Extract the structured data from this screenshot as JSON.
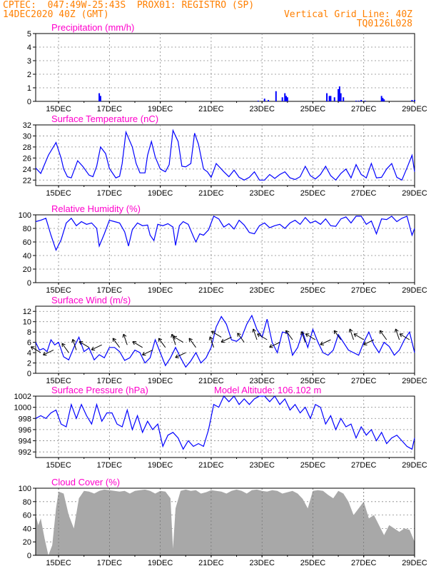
{
  "header": {
    "line1": "CPTEC:  047:49W-25:43S  PROX01: REGISTRO (SP)",
    "line2_left": "14DEC2020 40Z (GMT)",
    "line2_right": "Vertical Grid Line: 40Z",
    "line3_right": "TQ0126L028"
  },
  "colors": {
    "accent": "#ff7f00",
    "title": "#ff00cc",
    "series": "#0000ff",
    "cloud": "#a8a8a8",
    "arrow": "#000000"
  },
  "chart_data": [
    {
      "type": "bar",
      "title": "Precipitation (mm/h)",
      "xlabel": "",
      "ylabel": "",
      "ylim": [
        0,
        5
      ],
      "yticks": [
        "0",
        "1",
        "2",
        "3",
        "4",
        "5"
      ],
      "x_ticks": [
        "15DEC",
        "17DEC",
        "19DEC",
        "21DEC",
        "23DEC",
        "25DEC",
        "27DEC",
        "29DEC"
      ],
      "xlim_days": [
        14.1,
        29.0
      ],
      "x_days": [
        16.6,
        16.65,
        22.85,
        23.1,
        23.25,
        23.55,
        23.8,
        23.9,
        23.95,
        24.0,
        25.55,
        25.65,
        25.7,
        25.85,
        26.0,
        26.05,
        26.1,
        26.2,
        26.7,
        26.8,
        26.9,
        27.05,
        27.7,
        27.75,
        27.8,
        28.9,
        29.0
      ],
      "values": [
        0.6,
        0.4,
        0.05,
        0.2,
        0.1,
        0.75,
        0.3,
        0.6,
        0.4,
        0.3,
        0.6,
        0.4,
        0.4,
        0.3,
        0.9,
        1.1,
        0.6,
        0.3,
        0.05,
        0.05,
        0.1,
        0.05,
        0.4,
        0.25,
        0.15,
        0.1,
        0.1
      ]
    },
    {
      "type": "line",
      "title": "Surface Temperature (nC)",
      "ylim": [
        21,
        32
      ],
      "yticks": [
        "22",
        "24",
        "26",
        "28",
        "30",
        "32"
      ],
      "x_ticks": [
        "15DEC",
        "17DEC",
        "19DEC",
        "21DEC",
        "23DEC",
        "25DEC",
        "27DEC",
        "29DEC"
      ],
      "xlim_days": [
        14.1,
        29.0
      ],
      "x": [
        14.1,
        14.3,
        14.6,
        14.9,
        15.1,
        15.2,
        15.35,
        15.5,
        15.75,
        15.95,
        16.2,
        16.35,
        16.5,
        16.65,
        16.85,
        17.0,
        17.25,
        17.4,
        17.5,
        17.65,
        17.9,
        18.05,
        18.2,
        18.4,
        18.5,
        18.65,
        18.8,
        19.0,
        19.2,
        19.35,
        19.5,
        19.7,
        19.85,
        20.0,
        20.2,
        20.35,
        20.5,
        20.7,
        20.85,
        21.0,
        21.2,
        21.5,
        21.7,
        21.9,
        22.1,
        22.3,
        22.5,
        22.7,
        22.9,
        23.1,
        23.3,
        23.5,
        23.7,
        23.9,
        24.1,
        24.3,
        24.5,
        24.7,
        24.9,
        25.1,
        25.3,
        25.5,
        25.7,
        25.9,
        26.1,
        26.3,
        26.5,
        26.7,
        26.9,
        27.1,
        27.3,
        27.5,
        27.7,
        27.9,
        28.1,
        28.3,
        28.5,
        28.7,
        28.9,
        29.0
      ],
      "y": [
        24.2,
        23.2,
        26.5,
        28.8,
        26.0,
        24.0,
        22.6,
        22.4,
        25.5,
        24.5,
        22.9,
        22.6,
        24.5,
        28.0,
        26.8,
        24.1,
        22.4,
        22.7,
        25.0,
        30.7,
        28.0,
        25.0,
        23.3,
        23.3,
        26.5,
        29.0,
        26.2,
        24.0,
        23.5,
        24.8,
        31.0,
        29.0,
        24.5,
        24.4,
        25.0,
        30.5,
        28.5,
        24.0,
        23.5,
        22.5,
        25.0,
        23.5,
        22.6,
        23.8,
        22.5,
        22.0,
        22.5,
        23.5,
        22.0,
        22.0,
        23.0,
        22.3,
        23.0,
        23.5,
        22.4,
        22.1,
        22.6,
        24.5,
        22.8,
        22.2,
        23.0,
        24.5,
        22.8,
        22.0,
        23.2,
        24.0,
        22.4,
        24.8,
        23.0,
        22.4,
        25.0,
        22.4,
        22.5,
        24.0,
        25.0,
        22.5,
        22.0,
        24.2,
        26.5,
        23.5
      ]
    },
    {
      "type": "line",
      "title": "Relative Humidity (%)",
      "ylim": [
        0,
        100
      ],
      "yticks": [
        "0",
        "20",
        "40",
        "60",
        "80",
        "100"
      ],
      "x_ticks": [
        "15DEC",
        "17DEC",
        "19DEC",
        "21DEC",
        "23DEC",
        "25DEC",
        "27DEC",
        "29DEC"
      ],
      "xlim_days": [
        14.1,
        29.0
      ],
      "x": [
        14.1,
        14.3,
        14.5,
        14.7,
        14.9,
        15.1,
        15.3,
        15.5,
        15.7,
        15.9,
        16.1,
        16.3,
        16.5,
        16.6,
        16.8,
        17.0,
        17.2,
        17.4,
        17.6,
        17.75,
        17.9,
        18.1,
        18.3,
        18.5,
        18.6,
        18.75,
        18.9,
        19.1,
        19.3,
        19.5,
        19.6,
        19.75,
        19.9,
        20.1,
        20.3,
        20.4,
        20.55,
        20.7,
        20.9,
        21.1,
        21.3,
        21.5,
        21.7,
        21.9,
        22.1,
        22.3,
        22.5,
        22.7,
        22.9,
        23.1,
        23.3,
        23.5,
        23.7,
        23.9,
        24.1,
        24.3,
        24.5,
        24.7,
        24.9,
        25.1,
        25.3,
        25.5,
        25.7,
        25.9,
        26.1,
        26.3,
        26.5,
        26.7,
        26.9,
        27.1,
        27.3,
        27.5,
        27.7,
        27.9,
        28.1,
        28.3,
        28.5,
        28.7,
        28.9,
        29.0
      ],
      "y": [
        90,
        92,
        95,
        70,
        48,
        63,
        88,
        95,
        84,
        90,
        86,
        88,
        80,
        54,
        72,
        92,
        90,
        88,
        75,
        54,
        78,
        88,
        84,
        85,
        70,
        62,
        86,
        84,
        87,
        82,
        55,
        84,
        90,
        86,
        68,
        60,
        72,
        70,
        78,
        98,
        94,
        82,
        87,
        79,
        92,
        85,
        74,
        72,
        84,
        88,
        81,
        84,
        86,
        80,
        88,
        92,
        86,
        96,
        88,
        91,
        86,
        94,
        84,
        83,
        94,
        97,
        88,
        98,
        98,
        86,
        91,
        72,
        94,
        93,
        98,
        90,
        95,
        98,
        70,
        80
      ]
    },
    {
      "type": "line",
      "title": "Surface Wind (m/s)",
      "ylim": [
        0,
        13
      ],
      "yticks": [
        "0",
        "2",
        "4",
        "6",
        "8",
        "10",
        "12"
      ],
      "x_ticks": [
        "15DEC",
        "17DEC",
        "19DEC",
        "21DEC",
        "23DEC",
        "25DEC",
        "27DEC",
        "29DEC"
      ],
      "xlim_days": [
        14.1,
        29.0
      ],
      "x": [
        14.1,
        14.25,
        14.4,
        14.55,
        14.7,
        14.85,
        15.0,
        15.2,
        15.4,
        15.6,
        15.8,
        16.0,
        16.2,
        16.4,
        16.6,
        16.8,
        17.0,
        17.2,
        17.4,
        17.6,
        17.8,
        18.0,
        18.2,
        18.4,
        18.6,
        18.8,
        19.0,
        19.2,
        19.4,
        19.6,
        19.8,
        20.0,
        20.2,
        20.4,
        20.6,
        20.8,
        21.0,
        21.2,
        21.4,
        21.6,
        21.8,
        22.0,
        22.2,
        22.4,
        22.6,
        22.8,
        23.0,
        23.2,
        23.4,
        23.6,
        23.8,
        24.0,
        24.2,
        24.4,
        24.6,
        24.8,
        25.0,
        25.2,
        25.4,
        25.6,
        25.8,
        26.0,
        26.2,
        26.4,
        26.6,
        26.8,
        27.0,
        27.2,
        27.4,
        27.6,
        27.8,
        28.0,
        28.2,
        28.4,
        28.6,
        28.8,
        29.0
      ],
      "y": [
        6.0,
        4.5,
        4.8,
        4.2,
        6.5,
        5.5,
        6.0,
        3.2,
        2.6,
        5.0,
        7.0,
        4.2,
        4.9,
        2.6,
        3.6,
        3.0,
        5.0,
        5.0,
        4.2,
        2.5,
        3.0,
        4.5,
        4.0,
        2.0,
        3.0,
        6.5,
        4.0,
        1.5,
        3.0,
        5.0,
        3.0,
        1.2,
        2.4,
        4.0,
        2.0,
        3.0,
        5.0,
        9.0,
        11.0,
        9.5,
        6.5,
        6.2,
        7.0,
        9.5,
        11.2,
        8.5,
        7.0,
        10.5,
        6.0,
        4.0,
        8.0,
        7.8,
        3.5,
        5.0,
        8.0,
        5.0,
        8.5,
        6.0,
        4.0,
        3.5,
        4.5,
        7.5,
        6.0,
        4.5,
        4.0,
        3.5,
        6.0,
        8.0,
        5.5,
        4.0,
        6.0,
        5.2,
        3.5,
        4.5,
        6.5,
        8.0,
        4.0
      ],
      "arrows": {
        "x_days": [
          14.3,
          14.8,
          15.4,
          15.7,
          16.2,
          16.7,
          17.4,
          17.7,
          18.3,
          18.7,
          19.2,
          19.6,
          19.9,
          20.0,
          20.4,
          21.1,
          21.4,
          21.8,
          22.3,
          22.8,
          23.2,
          23.7,
          24.2,
          24.7,
          25.1,
          25.7,
          26.1,
          26.6,
          27.0,
          27.4,
          27.9,
          28.4,
          28.8
        ],
        "speeds": [
          4.0,
          4.5,
          4.0,
          4.5,
          5.0,
          5.5,
          5.0,
          5.5,
          5.0,
          4.5,
          5.0,
          5.5,
          6.0,
          4.0,
          5.0,
          5.0,
          7.0,
          7.0,
          6.0,
          6.5,
          6.5,
          6.0,
          6.5,
          6.0,
          6.5,
          6.5,
          6.5,
          6.5,
          6.5,
          6.5,
          6.5,
          6.5,
          6.5
        ]
      }
    },
    {
      "type": "line",
      "title": "Surface Pressure (hPa)",
      "annotation": "Model Altitude: 106.102 m",
      "ylim": [
        991,
        1002
      ],
      "yticks": [
        "992",
        "994",
        "996",
        "998",
        "1000",
        "1002"
      ],
      "x_ticks": [
        "15DEC",
        "17DEC",
        "19DEC",
        "21DEC",
        "23DEC",
        "25DEC",
        "27DEC",
        "29DEC"
      ],
      "xlim_days": [
        14.1,
        29.0
      ],
      "x": [
        14.1,
        14.3,
        14.5,
        14.7,
        14.9,
        15.1,
        15.3,
        15.5,
        15.7,
        15.9,
        16.1,
        16.3,
        16.5,
        16.7,
        16.9,
        17.1,
        17.3,
        17.5,
        17.7,
        17.9,
        18.1,
        18.3,
        18.5,
        18.7,
        18.9,
        19.1,
        19.3,
        19.5,
        19.7,
        19.9,
        20.1,
        20.3,
        20.5,
        20.7,
        20.9,
        21.1,
        21.3,
        21.5,
        21.7,
        21.9,
        22.1,
        22.3,
        22.5,
        22.7,
        22.9,
        23.1,
        23.3,
        23.5,
        23.7,
        23.9,
        24.1,
        24.3,
        24.5,
        24.7,
        24.9,
        25.1,
        25.3,
        25.5,
        25.7,
        25.9,
        26.1,
        26.3,
        26.5,
        26.7,
        26.9,
        27.1,
        27.3,
        27.5,
        27.7,
        27.9,
        28.1,
        28.3,
        28.5,
        28.7,
        28.9,
        29.0
      ],
      "y": [
        998.0,
        998.5,
        998.0,
        999.0,
        999.5,
        997.0,
        996.5,
        1000.5,
        998.0,
        1000.5,
        998.5,
        997.0,
        1000.5,
        997.5,
        999.0,
        999.0,
        997.0,
        996.5,
        999.5,
        996.0,
        998.5,
        995.5,
        997.5,
        996.0,
        997.0,
        993.0,
        995.0,
        995.5,
        994.5,
        992.5,
        994.0,
        993.0,
        993.5,
        993.0,
        996.0,
        1000.5,
        1000.0,
        1002.0,
        1001.0,
        1002.0,
        1000.5,
        1001.5,
        1000.5,
        1001.5,
        1002.0,
        1002.0,
        1001.0,
        1002.0,
        1000.5,
        1001.5,
        999.5,
        1000.5,
        999.0,
        1000.0,
        998.0,
        1000.5,
        1000.0,
        997.0,
        998.5,
        996.0,
        998.0,
        996.5,
        997.0,
        994.5,
        996.5,
        995.0,
        996.0,
        994.0,
        995.5,
        993.5,
        994.5,
        995.0,
        994.0,
        993.0,
        992.5,
        994.5
      ]
    },
    {
      "type": "area",
      "title": "Cloud Cover (%)",
      "ylim": [
        0,
        100
      ],
      "yticks": [
        "0",
        "20",
        "40",
        "60",
        "80",
        "100"
      ],
      "x_ticks": [
        "15DEC",
        "17DEC",
        "19DEC",
        "21DEC",
        "23DEC",
        "25DEC",
        "27DEC",
        "29DEC"
      ],
      "xlim_days": [
        14.1,
        29.0
      ],
      "x": [
        14.1,
        14.2,
        14.3,
        14.45,
        14.6,
        14.75,
        14.9,
        15.0,
        15.2,
        15.4,
        15.6,
        15.8,
        16.0,
        16.2,
        16.4,
        16.6,
        16.8,
        17.0,
        17.2,
        17.4,
        17.6,
        17.8,
        18.0,
        18.2,
        18.4,
        18.6,
        18.8,
        19.0,
        19.2,
        19.4,
        19.5,
        19.6,
        19.8,
        20.0,
        20.2,
        20.4,
        20.6,
        20.8,
        21.0,
        21.2,
        21.4,
        21.6,
        21.8,
        22.0,
        22.2,
        22.4,
        22.6,
        22.8,
        23.0,
        23.2,
        23.4,
        23.6,
        23.8,
        24.0,
        24.2,
        24.4,
        24.6,
        24.8,
        25.0,
        25.2,
        25.4,
        25.6,
        25.8,
        26.0,
        26.2,
        26.4,
        26.6,
        26.8,
        27.0,
        27.2,
        27.4,
        27.6,
        27.8,
        28.0,
        28.2,
        28.4,
        28.6,
        28.8,
        29.0
      ],
      "y": [
        60,
        45,
        55,
        25,
        0,
        15,
        70,
        95,
        92,
        60,
        40,
        85,
        96,
        95,
        92,
        96,
        98,
        97,
        96,
        95,
        96,
        92,
        96,
        97,
        98,
        96,
        92,
        96,
        95,
        85,
        10,
        70,
        96,
        98,
        96,
        97,
        92,
        94,
        97,
        96,
        95,
        92,
        96,
        98,
        96,
        92,
        97,
        98,
        96,
        95,
        97,
        96,
        92,
        94,
        96,
        92,
        84,
        70,
        96,
        97,
        96,
        90,
        85,
        96,
        92,
        80,
        60,
        70,
        80,
        55,
        60,
        45,
        30,
        45,
        40,
        35,
        40,
        38,
        20
      ]
    }
  ]
}
